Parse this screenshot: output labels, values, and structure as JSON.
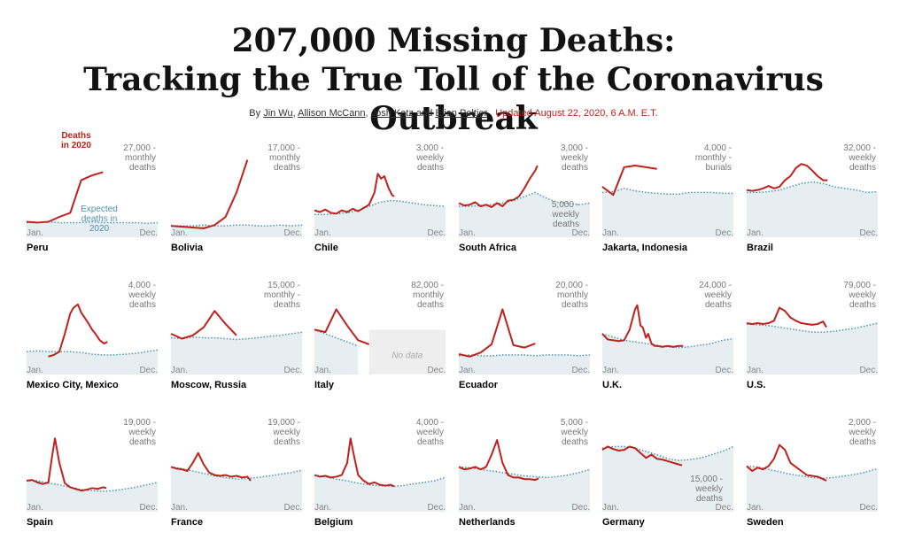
{
  "header": {
    "title_line1": "207,000 Missing Deaths:",
    "title_line2": "Tracking the True Toll of the Coronavirus Outbreak",
    "byline_prefix": "By",
    "authors": [
      "Jin Wu",
      "Allison McCann",
      "Josh Katz",
      "Elian Peltier"
    ],
    "sep1": ",",
    "sep2": ",",
    "sep3": "and",
    "updated": "Updated August 22, 2020, 6 A.M. E.T."
  },
  "axis": {
    "start": "Jan.",
    "end": "Dec."
  },
  "annotations": {
    "deaths_2020": [
      "Deaths",
      "in 2020"
    ],
    "expected": [
      "Expected",
      "deaths in",
      "2020"
    ],
    "no_data": "No data"
  },
  "colors": {
    "deaths": "#c0211c",
    "expected_line": "#4f93b2",
    "expected_fill": "#e7eef1",
    "no_data_fill": "#eeeeee"
  },
  "chart_data": [
    {
      "type": "area",
      "name": "Peru",
      "unit_lines": [
        "27,000 -",
        "monthly",
        "deaths"
      ],
      "expected_y": [
        0.18,
        0.18,
        0.19,
        0.18,
        0.18,
        0.18,
        0.19,
        0.18,
        0.18,
        0.18,
        0.18,
        0.17,
        0.18
      ],
      "deaths_x": [
        0,
        1,
        2,
        3,
        4,
        5,
        6,
        7
      ],
      "deaths_y": [
        0.19,
        0.18,
        0.19,
        0.25,
        0.3,
        0.7,
        0.76,
        0.8
      ]
    },
    {
      "type": "area",
      "name": "Bolivia",
      "unit_lines": [
        "17,000 -",
        "monthly",
        "deaths"
      ],
      "expected_y": [
        0.14,
        0.14,
        0.14,
        0.15,
        0.14,
        0.14,
        0.15,
        0.15,
        0.14,
        0.14,
        0.15,
        0.14,
        0.15
      ],
      "deaths_x": [
        0,
        1,
        2,
        3,
        4,
        5,
        6,
        7
      ],
      "deaths_y": [
        0.14,
        0.13,
        0.12,
        0.11,
        0.15,
        0.25,
        0.55,
        0.95
      ]
    },
    {
      "type": "area",
      "name": "Chile",
      "unit_lines": [
        "3,000 -",
        "weekly",
        "deaths"
      ],
      "expected_y": [
        0.28,
        0.28,
        0.29,
        0.3,
        0.33,
        0.38,
        0.43,
        0.45,
        0.44,
        0.42,
        0.4,
        0.39,
        0.38
      ],
      "deaths_x": [
        0,
        0.5,
        1,
        1.5,
        2,
        2.5,
        3,
        3.5,
        4,
        4.5,
        5,
        5.5,
        5.8,
        6.1,
        6.4,
        6.8,
        7.1,
        7.3
      ],
      "deaths_y": [
        0.33,
        0.31,
        0.34,
        0.3,
        0.29,
        0.33,
        0.31,
        0.35,
        0.32,
        0.36,
        0.4,
        0.55,
        0.78,
        0.72,
        0.75,
        0.6,
        0.52,
        0.5
      ]
    },
    {
      "type": "area",
      "name": "South Africa",
      "unit_lines": [
        "3,000 -",
        "weekly",
        "deaths"
      ],
      "unit_lines_lower": [
        "5,000 -",
        "weekly",
        "deaths"
      ],
      "expected_y": [
        0.38,
        0.38,
        0.39,
        0.4,
        0.42,
        0.45,
        0.5,
        0.55,
        0.48,
        0.43,
        0.42,
        0.4,
        0.42
      ],
      "deaths_x": [
        0,
        0.5,
        1,
        1.5,
        2,
        2.5,
        3,
        3.5,
        4,
        4.5,
        5,
        5.5,
        6,
        6.5,
        7,
        7.2
      ],
      "deaths_y": [
        0.42,
        0.39,
        0.4,
        0.43,
        0.38,
        0.4,
        0.37,
        0.42,
        0.38,
        0.45,
        0.46,
        0.5,
        0.6,
        0.72,
        0.82,
        0.88
      ]
    },
    {
      "type": "area",
      "name": "Jakarta, Indonesia",
      "unit_lines": [
        "4,000 -",
        "monthly -",
        "burials"
      ],
      "expected_y": [
        0.55,
        0.56,
        0.6,
        0.57,
        0.55,
        0.54,
        0.53,
        0.53,
        0.55,
        0.55,
        0.55,
        0.54,
        0.54
      ],
      "deaths_x": [
        0,
        1,
        2,
        3,
        4,
        5
      ],
      "deaths_y": [
        0.62,
        0.52,
        0.86,
        0.88,
        0.86,
        0.84
      ]
    },
    {
      "type": "area",
      "name": "Brazil",
      "unit_lines": [
        "32,000 -",
        "weekly",
        "deaths"
      ],
      "expected_y": [
        0.55,
        0.55,
        0.56,
        0.58,
        0.62,
        0.66,
        0.68,
        0.66,
        0.62,
        0.6,
        0.58,
        0.55,
        0.56
      ],
      "deaths_x": [
        0,
        0.5,
        1,
        1.5,
        2,
        2.5,
        3,
        3.5,
        4,
        4.5,
        5,
        5.5,
        6,
        6.5,
        7,
        7.4
      ],
      "deaths_y": [
        0.58,
        0.57,
        0.58,
        0.6,
        0.63,
        0.6,
        0.62,
        0.7,
        0.75,
        0.85,
        0.9,
        0.88,
        0.82,
        0.75,
        0.7,
        0.7
      ]
    },
    {
      "type": "area",
      "name": "Mexico City, Mexico",
      "unit_lines": [
        "4,000 -",
        "weekly",
        "deaths"
      ],
      "expected_y": [
        0.28,
        0.29,
        0.28,
        0.28,
        0.28,
        0.27,
        0.25,
        0.24,
        0.24,
        0.25,
        0.26,
        0.28,
        0.3
      ],
      "deaths_x": [
        2,
        2.5,
        3,
        3.5,
        4,
        4.3,
        4.7,
        5,
        5.3,
        5.7,
        6,
        6.3,
        6.7,
        7.1,
        7.4
      ],
      "deaths_y": [
        0.22,
        0.24,
        0.28,
        0.5,
        0.75,
        0.82,
        0.86,
        0.76,
        0.7,
        0.62,
        0.55,
        0.5,
        0.42,
        0.38,
        0.4
      ]
    },
    {
      "type": "area",
      "name": "Moscow, Russia",
      "unit_lines": [
        "15,000 -",
        "monthly -",
        "deaths"
      ],
      "expected_y": [
        0.45,
        0.44,
        0.46,
        0.45,
        0.45,
        0.44,
        0.43,
        0.44,
        0.45,
        0.47,
        0.48,
        0.5,
        0.52
      ],
      "deaths_x": [
        0,
        1,
        2,
        3,
        4,
        5,
        6
      ],
      "deaths_y": [
        0.5,
        0.44,
        0.48,
        0.58,
        0.78,
        0.62,
        0.48
      ]
    },
    {
      "type": "area",
      "name": "Italy",
      "unit_lines": [
        "82,000 -",
        "monthly",
        "deaths"
      ],
      "no_data_from": 5,
      "expected_y": [
        0.55,
        0.5,
        0.45,
        0.4,
        0.35
      ],
      "deaths_x": [
        0,
        1,
        2,
        3,
        4,
        5
      ],
      "deaths_y": [
        0.55,
        0.52,
        0.8,
        0.6,
        0.42,
        0.37
      ]
    },
    {
      "type": "area",
      "name": "Ecuador",
      "unit_lines": [
        "20,000 -",
        "monthly",
        "deaths"
      ],
      "expected_y": [
        0.23,
        0.24,
        0.23,
        0.23,
        0.24,
        0.24,
        0.24,
        0.23,
        0.24,
        0.24,
        0.24,
        0.23,
        0.24
      ],
      "deaths_x": [
        0,
        1,
        2,
        3,
        4,
        5,
        6,
        7
      ],
      "deaths_y": [
        0.25,
        0.22,
        0.27,
        0.37,
        0.8,
        0.36,
        0.33,
        0.38
      ]
    },
    {
      "type": "area",
      "name": "U.K.",
      "unit_lines": [
        "24,000 -",
        "weekly",
        "deaths"
      ],
      "expected_y": [
        0.5,
        0.46,
        0.42,
        0.4,
        0.38,
        0.36,
        0.34,
        0.33,
        0.34,
        0.36,
        0.38,
        0.42,
        0.44
      ],
      "deaths_x": [
        0,
        0.5,
        1,
        1.5,
        2,
        2.5,
        3,
        3.2,
        3.5,
        3.7,
        4,
        4.2,
        4.5,
        4.8,
        5,
        5.5,
        6,
        6.5,
        7,
        7.4
      ],
      "deaths_y": [
        0.5,
        0.43,
        0.42,
        0.41,
        0.42,
        0.55,
        0.8,
        0.85,
        0.6,
        0.58,
        0.45,
        0.5,
        0.38,
        0.35,
        0.35,
        0.34,
        0.35,
        0.34,
        0.35,
        0.35
      ]
    },
    {
      "type": "area",
      "name": "U.S.",
      "unit_lines": [
        "79,000 -",
        "weekly",
        "deaths"
      ],
      "expected_y": [
        0.62,
        0.61,
        0.6,
        0.58,
        0.56,
        0.54,
        0.52,
        0.52,
        0.53,
        0.55,
        0.57,
        0.6,
        0.63
      ],
      "deaths_x": [
        0,
        0.5,
        1,
        1.5,
        2,
        2.5,
        3,
        3.5,
        4,
        4.5,
        5,
        5.5,
        6,
        6.5,
        7,
        7.3
      ],
      "deaths_y": [
        0.63,
        0.62,
        0.63,
        0.62,
        0.63,
        0.66,
        0.82,
        0.78,
        0.7,
        0.66,
        0.63,
        0.62,
        0.61,
        0.62,
        0.65,
        0.58
      ]
    },
    {
      "type": "area",
      "name": "Spain",
      "unit_lines": [
        "19,000 -",
        "weekly",
        "deaths"
      ],
      "expected_y": [
        0.38,
        0.38,
        0.35,
        0.33,
        0.3,
        0.27,
        0.26,
        0.25,
        0.26,
        0.28,
        0.3,
        0.33,
        0.36
      ],
      "deaths_x": [
        0,
        0.5,
        1,
        1.5,
        2,
        2.3,
        2.6,
        3,
        3.5,
        4,
        4.5,
        5,
        5.5,
        6,
        6.5,
        7,
        7.3
      ],
      "deaths_y": [
        0.38,
        0.39,
        0.36,
        0.34,
        0.36,
        0.65,
        0.9,
        0.6,
        0.35,
        0.3,
        0.28,
        0.26,
        0.27,
        0.29,
        0.28,
        0.3,
        0.29
      ]
    },
    {
      "type": "area",
      "name": "France",
      "unit_lines": [
        "19,000 -",
        "weekly",
        "deaths"
      ],
      "expected_y": [
        0.55,
        0.53,
        0.5,
        0.47,
        0.44,
        0.42,
        0.4,
        0.41,
        0.42,
        0.44,
        0.46,
        0.48,
        0.51
      ],
      "deaths_x": [
        0,
        0.5,
        1,
        1.5,
        2,
        2.5,
        3,
        3.5,
        4,
        4.5,
        5,
        5.5,
        6,
        6.5,
        7,
        7.3
      ],
      "deaths_y": [
        0.55,
        0.53,
        0.52,
        0.5,
        0.6,
        0.72,
        0.58,
        0.48,
        0.45,
        0.44,
        0.45,
        0.43,
        0.44,
        0.42,
        0.43,
        0.38
      ]
    },
    {
      "type": "area",
      "name": "Belgium",
      "unit_lines": [
        "4,000 -",
        "weekly",
        "deaths"
      ],
      "expected_y": [
        0.45,
        0.43,
        0.4,
        0.38,
        0.35,
        0.33,
        0.32,
        0.31,
        0.32,
        0.34,
        0.36,
        0.38,
        0.42
      ],
      "deaths_x": [
        0,
        0.5,
        1,
        1.5,
        2,
        2.5,
        3,
        3.3,
        3.6,
        4,
        4.5,
        5,
        5.5,
        6,
        6.5,
        7,
        7.3
      ],
      "deaths_y": [
        0.45,
        0.43,
        0.44,
        0.42,
        0.43,
        0.45,
        0.6,
        0.9,
        0.7,
        0.45,
        0.38,
        0.34,
        0.36,
        0.33,
        0.32,
        0.33,
        0.31
      ]
    },
    {
      "type": "area",
      "name": "Netherlands",
      "unit_lines": [
        "5,000 -",
        "weekly",
        "deaths"
      ],
      "expected_y": [
        0.55,
        0.54,
        0.52,
        0.5,
        0.48,
        0.46,
        0.44,
        0.43,
        0.42,
        0.43,
        0.45,
        0.48,
        0.52
      ],
      "deaths_x": [
        0,
        0.5,
        1,
        1.5,
        2,
        2.5,
        3,
        3.5,
        4,
        4.5,
        5,
        5.5,
        6,
        6.5,
        7,
        7.3
      ],
      "deaths_y": [
        0.55,
        0.52,
        0.53,
        0.55,
        0.52,
        0.55,
        0.7,
        0.88,
        0.6,
        0.45,
        0.42,
        0.42,
        0.4,
        0.4,
        0.39,
        0.41
      ]
    },
    {
      "type": "area",
      "name": "Germany",
      "unit_lines_lower": [
        "15,000 -",
        "weekly",
        "deaths"
      ],
      "expected_y": [
        0.78,
        0.8,
        0.8,
        0.78,
        0.74,
        0.7,
        0.65,
        0.63,
        0.64,
        0.66,
        0.7,
        0.74,
        0.8
      ],
      "deaths_x": [
        0,
        0.5,
        1,
        1.5,
        2,
        2.5,
        3,
        3.5,
        4,
        4.5,
        5,
        5.5,
        6,
        6.5,
        7,
        7.3
      ],
      "deaths_y": [
        0.76,
        0.8,
        0.77,
        0.75,
        0.76,
        0.8,
        0.78,
        0.72,
        0.66,
        0.7,
        0.65,
        0.64,
        0.62,
        0.6,
        0.58,
        0.57
      ]
    },
    {
      "type": "area",
      "name": "Sweden",
      "unit_lines": [
        "2,000 -",
        "weekly",
        "deaths"
      ],
      "expected_y": [
        0.56,
        0.55,
        0.52,
        0.49,
        0.46,
        0.44,
        0.42,
        0.41,
        0.42,
        0.44,
        0.46,
        0.49,
        0.53
      ],
      "deaths_x": [
        0,
        0.5,
        1,
        1.5,
        2,
        2.5,
        3,
        3.5,
        4,
        4.5,
        5,
        5.5,
        6,
        6.5,
        7,
        7.3
      ],
      "deaths_y": [
        0.56,
        0.5,
        0.54,
        0.52,
        0.56,
        0.65,
        0.82,
        0.76,
        0.6,
        0.55,
        0.5,
        0.45,
        0.44,
        0.43,
        0.4,
        0.38
      ]
    }
  ]
}
